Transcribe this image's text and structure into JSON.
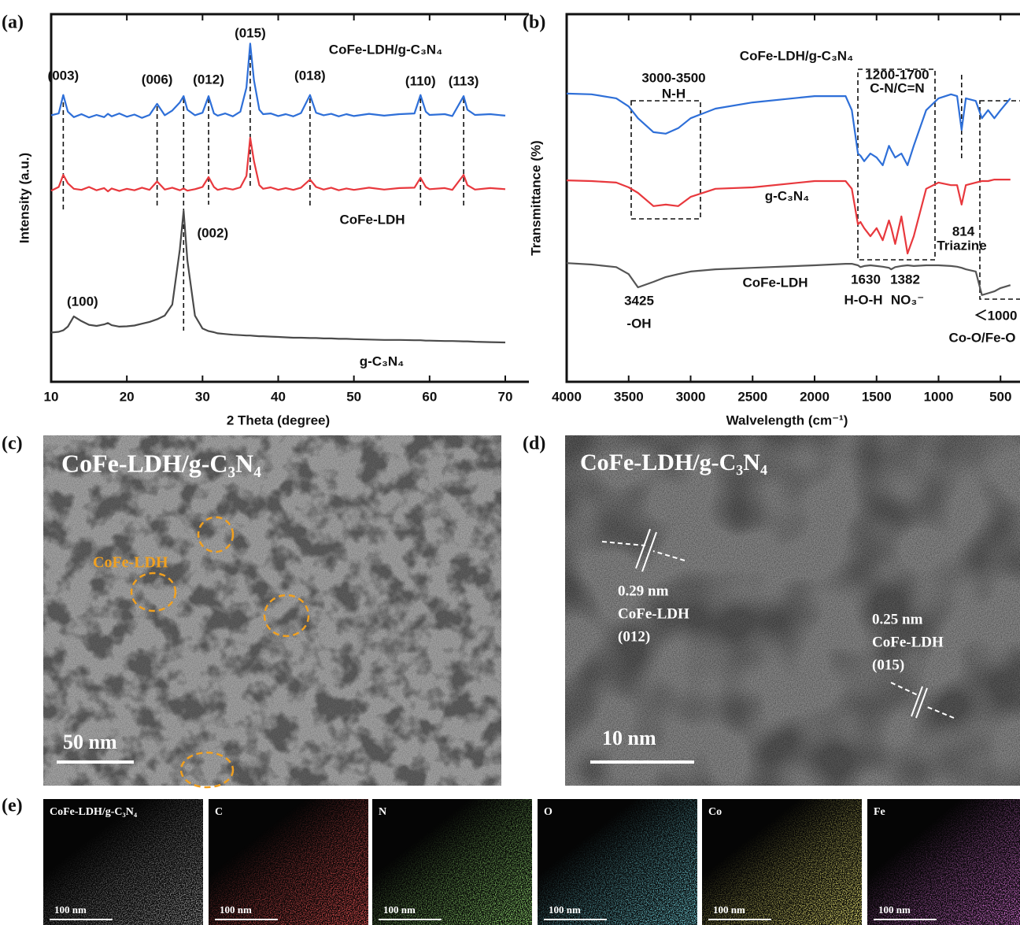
{
  "chart_data": [
    {
      "type": "line",
      "panel": "(a)",
      "xlabel": "2 Theta (degree)",
      "ylabel": "Intensity (a.u.)",
      "xlim": [
        10,
        70
      ],
      "ylim": [
        0,
        100
      ],
      "xticks": [
        10,
        20,
        30,
        40,
        50,
        60,
        70
      ],
      "x": [
        10,
        11,
        11.6,
        12.2,
        13,
        14,
        15,
        16,
        17,
        17.5,
        18,
        19,
        20,
        21,
        22,
        23,
        24,
        25,
        26,
        27,
        27.5,
        28,
        29,
        30,
        30.8,
        31.5,
        32,
        33,
        34,
        35,
        35.8,
        36.3,
        36.8,
        37.5,
        38,
        39,
        40,
        41,
        42,
        43,
        44.2,
        45,
        46,
        47,
        48,
        49,
        50,
        52,
        54,
        56,
        58,
        58.8,
        59.5,
        60,
        62,
        63,
        64.5,
        65,
        66,
        68,
        70
      ],
      "series": [
        {
          "name": "CoFe-LDH/g-C₃N₄",
          "color": "#2e6fd8",
          "values": [
            72.5,
            73,
            78,
            73.5,
            72,
            72.8,
            71.9,
            72.6,
            72,
            72.9,
            72.2,
            73,
            72.1,
            72.7,
            71.8,
            72.6,
            75.6,
            72.5,
            73.8,
            76,
            77.7,
            74,
            72.5,
            73.2,
            77.7,
            73,
            72.4,
            73,
            72.2,
            73.5,
            80,
            92,
            82,
            74,
            72.8,
            73,
            72.3,
            72.8,
            72.2,
            73.1,
            78,
            73.2,
            72.5,
            72.9,
            72.2,
            72.8,
            72.3,
            72.9,
            72.4,
            72.8,
            73,
            78,
            73.5,
            72.6,
            72.8,
            72.3,
            77.7,
            74,
            72.6,
            72.8,
            72.4
          ]
        },
        {
          "name": "CoFe-LDH",
          "color": "#e8383d",
          "values": [
            52,
            53,
            56.3,
            54,
            52.5,
            52.2,
            53,
            52.1,
            52.7,
            51.8,
            52.6,
            51.9,
            52.5,
            52.1,
            52.8,
            52.2,
            54.5,
            52.3,
            52.8,
            52.1,
            52.6,
            52,
            52.4,
            53,
            55.7,
            53,
            52.2,
            52.7,
            52.3,
            52.9,
            56,
            66.4,
            60,
            53.5,
            52.5,
            52.9,
            52.2,
            52.7,
            52.2,
            52.8,
            55,
            53,
            52.3,
            52.8,
            52.1,
            52.6,
            52.2,
            52.8,
            52.3,
            52.7,
            52.8,
            55.5,
            53,
            52.4,
            52.7,
            52.2,
            56.3,
            53.5,
            52.3,
            52.7,
            52.4
          ]
        },
        {
          "name": "g-C₃N₄",
          "color": "#4a4a4a",
          "values": [
            13.4,
            13.6,
            14,
            15,
            17.8,
            16.5,
            15.5,
            15.2,
            15.6,
            16,
            15.4,
            15,
            15.1,
            15.3,
            15.8,
            16.3,
            17,
            18,
            21,
            36,
            46.5,
            33,
            18,
            14.5,
            13.8,
            13.5,
            13.2,
            13,
            12.8,
            12.7,
            12.6,
            12.6,
            12.5,
            12.4,
            12.4,
            12.3,
            12.2,
            12.1,
            12,
            12,
            11.9,
            11.9,
            11.8,
            11.8,
            11.7,
            11.7,
            11.6,
            11.5,
            11.4,
            11.4,
            11.3,
            11.3,
            11.2,
            11.2,
            11.1,
            11.1,
            11,
            11,
            10.9,
            10.8,
            10.7
          ]
        }
      ],
      "annotations": [
        {
          "x": 11.6,
          "label": "(003)",
          "color": "#2e6fd8"
        },
        {
          "x": 24,
          "label": "(006)",
          "color": "#2e6fd8"
        },
        {
          "x": 30.8,
          "label": "(012)",
          "color": "#2e6fd8"
        },
        {
          "x": 36.3,
          "label": "(015)",
          "color": "#2e6fd8"
        },
        {
          "x": 44.2,
          "label": "(018)",
          "color": "#2e6fd8"
        },
        {
          "x": 58.8,
          "label": "(110)",
          "color": "#2e6fd8"
        },
        {
          "x": 64.5,
          "label": "(113)",
          "color": "#2e6fd8"
        },
        {
          "x": 13,
          "label": "(100)",
          "color": "#111111"
        },
        {
          "x": 27.5,
          "label": "(002)",
          "color": "#111111"
        }
      ],
      "reference_lines": [
        11.6,
        24,
        27.5,
        30.8,
        36.3,
        44.2,
        58.8,
        64.5
      ]
    },
    {
      "type": "line",
      "panel": "(b)",
      "xlabel": "Walvelength (cm⁻¹)",
      "ylabel": "Transmittance (%)",
      "xlim": [
        4000,
        400
      ],
      "ylim": [
        0,
        100
      ],
      "xticks": [
        4000,
        3500,
        3000,
        2500,
        2000,
        1500,
        1000,
        500
      ],
      "x": [
        4000,
        3800,
        3600,
        3500,
        3425,
        3300,
        3200,
        3100,
        3000,
        2800,
        2500,
        2000,
        1750,
        1700,
        1650,
        1630,
        1600,
        1550,
        1500,
        1450,
        1400,
        1382,
        1350,
        1300,
        1250,
        1200,
        1100,
        1000,
        900,
        850,
        814,
        780,
        700,
        650,
        600,
        550,
        500,
        420
      ],
      "series": [
        {
          "name": "CoFe-LDH/g-C₃N₄",
          "color": "#2e6fd8",
          "values": [
            78.4,
            78.2,
            77.1,
            74.9,
            71.7,
            67.9,
            67.5,
            69,
            71.7,
            74.3,
            76,
            77.7,
            77.7,
            73.9,
            62.1,
            61.5,
            60,
            62.1,
            61,
            58.9,
            64.2,
            63,
            61,
            62.1,
            58.9,
            64.2,
            73.9,
            77.1,
            78.2,
            77.7,
            68.5,
            77.1,
            76.4,
            71.7,
            73.9,
            71.7,
            73.9,
            77.1
          ]
        },
        {
          "name": "g-C₃N₄",
          "color": "#e8383d",
          "values": [
            54.8,
            54.6,
            54.2,
            52.9,
            51.4,
            47.8,
            48.2,
            47.8,
            50.3,
            52.5,
            52.9,
            54.6,
            54.6,
            52.5,
            42.8,
            43.5,
            41.8,
            39.6,
            41.8,
            38.5,
            43.9,
            42,
            37.5,
            45,
            34.9,
            39.6,
            52.5,
            54.2,
            53.5,
            53.5,
            48.2,
            53.5,
            54.2,
            54.6,
            54.6,
            55,
            55,
            55
          ]
        },
        {
          "name": "CoFe-LDH",
          "color": "#555555",
          "values": [
            32.3,
            31.9,
            31.2,
            29.3,
            25.7,
            27.2,
            28.5,
            29.3,
            30,
            30.6,
            31,
            31.7,
            32.1,
            32.1,
            31.7,
            31.2,
            31.5,
            31.7,
            31.5,
            31.3,
            31,
            30.6,
            31.2,
            31.5,
            31.7,
            31.5,
            31.7,
            31.7,
            31.5,
            31.3,
            31,
            30.6,
            30,
            23.6,
            24.1,
            24.6,
            25.5,
            26.3
          ]
        }
      ],
      "annotations": [
        {
          "label": "3000-3500"
        },
        {
          "label": "N-H"
        },
        {
          "label": "1200-1700"
        },
        {
          "label": "C-N/C=N"
        },
        {
          "label": "814"
        },
        {
          "label": "Triazine"
        },
        {
          "label": "3425"
        },
        {
          "label": "-OH"
        },
        {
          "label": "1630"
        },
        {
          "label": "H-O-H"
        },
        {
          "label": "1382"
        },
        {
          "label": "NO₃⁻"
        },
        {
          "label": "＜1000"
        },
        {
          "label": "Co-O/Fe-O"
        }
      ],
      "reference_lines": [
        814
      ]
    }
  ],
  "images": [
    {
      "panel": "(c)",
      "title": "CoFe-LDH/g-C₃N₄",
      "label": "CoFe-LDH",
      "scale_bar": "50 nm"
    },
    {
      "panel": "(d)",
      "title": "CoFe-LDH/g-C₃N₄",
      "fringes": [
        {
          "spacing": "0.29 nm",
          "phase": "CoFe-LDH",
          "plane": "(012)"
        },
        {
          "spacing": "0.25 nm",
          "phase": "CoFe-LDH",
          "plane": "(015)"
        }
      ],
      "scale_bar": "10 nm"
    }
  ],
  "mapping": {
    "panel": "(e)",
    "tiles": [
      {
        "label": "CoFe-LDH/g-C₃N₄",
        "scale_bar": "100 nm"
      },
      {
        "label": "C",
        "scale_bar": "100 nm"
      },
      {
        "label": "N",
        "scale_bar": "100 nm"
      },
      {
        "label": "O",
        "scale_bar": "100 nm"
      },
      {
        "label": "Co",
        "scale_bar": "100 nm"
      },
      {
        "label": "Fe",
        "scale_bar": "100 nm"
      }
    ]
  }
}
